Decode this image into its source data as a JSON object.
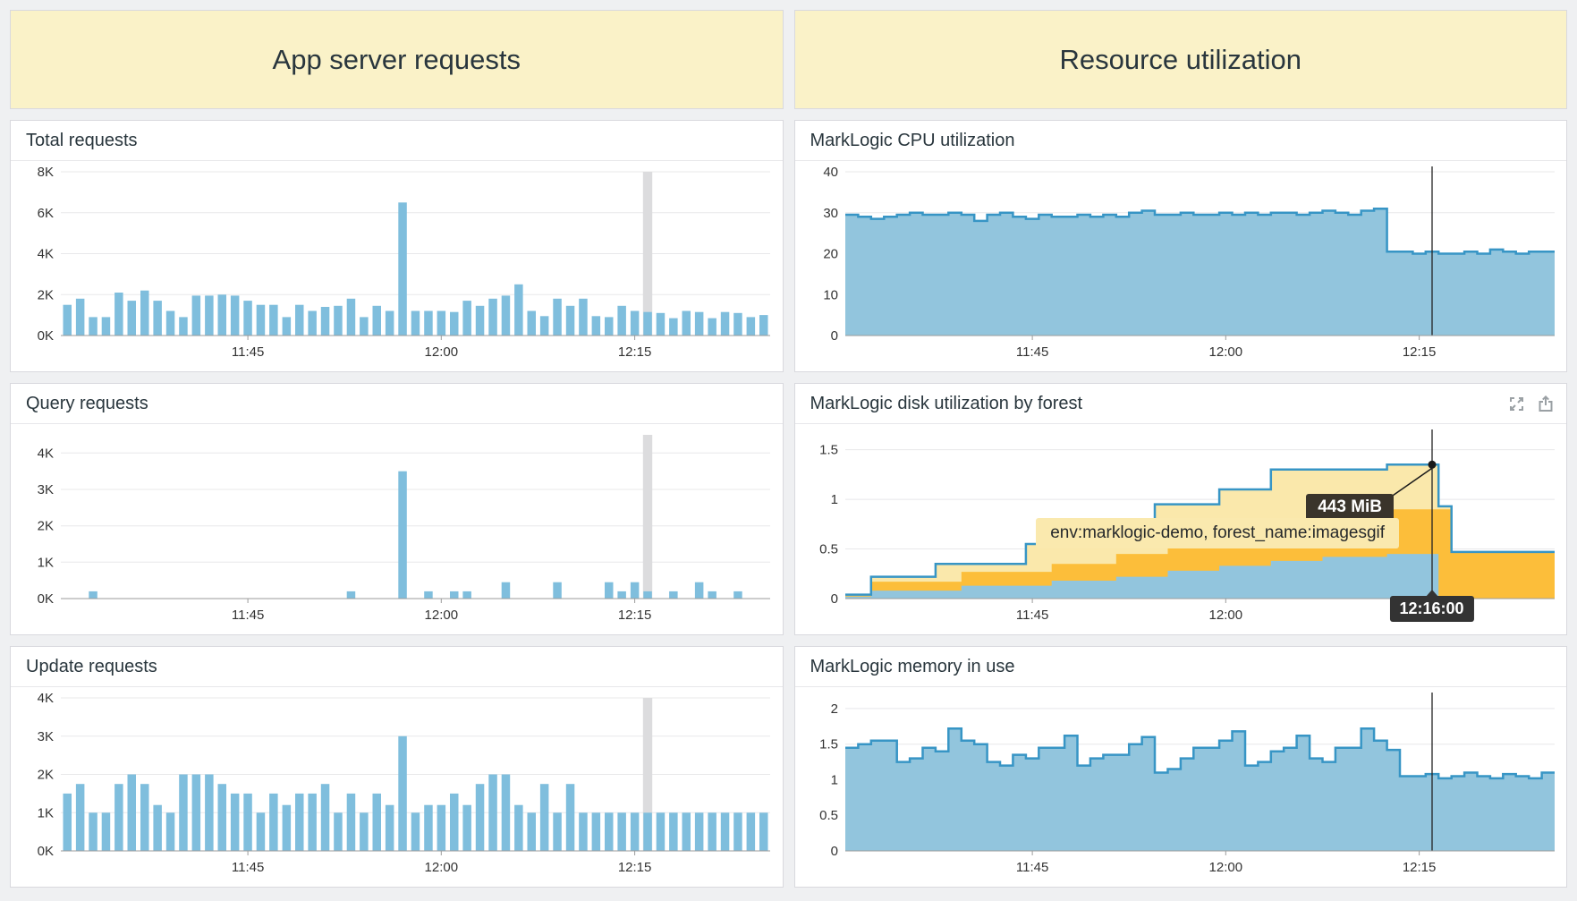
{
  "headers": {
    "left": "App server requests",
    "right": "Resource utilization"
  },
  "icons": {
    "expand": "expand-icon",
    "share": "share-upload-icon"
  },
  "colors": {
    "background": "#eff0f2",
    "panel_bg": "#ffffff",
    "panel_border": "#d9d9de",
    "header_bg": "#faf2c8",
    "title_color": "#29363d",
    "tick_color": "#333333",
    "grid": "#e8e8ea",
    "axis": "#9b9b9b",
    "bar": "#7fbedd",
    "hover_bar": "#dcdcde",
    "area_fill": "#92c5dd",
    "area_line": "#3795c5",
    "stack_blue": "#92c5dd",
    "stack_orange": "#fcbe3a",
    "stack_pale": "#fae8ab",
    "tooltip_dark_bg": "#3a342b",
    "tooltip_time_bg": "#333333",
    "tooltip_series_bg": "#fae9ae",
    "icon_color": "#9aa0a4",
    "crosshair": "#222222"
  },
  "time_axis": {
    "start": "11:31",
    "end": "12:25",
    "slots": 55,
    "ticks": [
      {
        "label": "11:45",
        "index": 14
      },
      {
        "label": "12:00",
        "index": 29
      },
      {
        "label": "12:15",
        "index": 44
      }
    ]
  },
  "chart_data": [
    {
      "id": "total-requests",
      "type": "bar",
      "title": "Total requests",
      "ylim": [
        0,
        8
      ],
      "hover_index": 45,
      "y_ticks": [
        {
          "label": "0K",
          "value": 0
        },
        {
          "label": "2K",
          "value": 2
        },
        {
          "label": "4K",
          "value": 4
        },
        {
          "label": "6K",
          "value": 6
        },
        {
          "label": "8K",
          "value": 8
        }
      ],
      "x_ticks": [
        {
          "label": "11:45",
          "index": 14
        },
        {
          "label": "12:00",
          "index": 29
        },
        {
          "label": "12:15",
          "index": 44
        }
      ],
      "values": [
        1.5,
        1.8,
        0.9,
        0.9,
        2.1,
        1.7,
        2.2,
        1.7,
        1.2,
        0.9,
        1.95,
        1.95,
        2.0,
        1.95,
        1.7,
        1.5,
        1.5,
        0.9,
        1.5,
        1.2,
        1.4,
        1.45,
        1.8,
        0.9,
        1.45,
        1.2,
        6.5,
        1.2,
        1.2,
        1.2,
        1.15,
        1.7,
        1.45,
        1.8,
        1.95,
        2.5,
        1.2,
        0.95,
        1.8,
        1.45,
        1.8,
        0.95,
        0.9,
        1.45,
        1.2,
        1.15,
        1.1,
        0.85,
        1.2,
        1.15,
        0.85,
        1.15,
        1.1,
        0.9,
        1.0
      ]
    },
    {
      "id": "cpu-utilization",
      "type": "area",
      "title": "MarkLogic CPU utilization",
      "ylim": [
        0,
        40
      ],
      "crosshair_index": 45,
      "y_ticks": [
        {
          "label": "0",
          "value": 0
        },
        {
          "label": "10",
          "value": 10
        },
        {
          "label": "20",
          "value": 20
        },
        {
          "label": "30",
          "value": 30
        },
        {
          "label": "40",
          "value": 40
        }
      ],
      "x_ticks": [
        {
          "label": "11:45",
          "index": 14
        },
        {
          "label": "12:00",
          "index": 29
        },
        {
          "label": "12:15",
          "index": 44
        }
      ],
      "values": [
        29.5,
        29,
        28.5,
        29,
        29.5,
        30,
        29.5,
        29.5,
        30,
        29.5,
        28,
        29.5,
        30,
        29,
        28.5,
        29.5,
        29,
        29,
        29.5,
        29,
        29.5,
        29,
        30,
        30.5,
        29.5,
        29.5,
        30,
        29.5,
        29.5,
        30,
        29.5,
        30,
        29.5,
        30,
        30,
        29.5,
        30,
        30.5,
        30,
        29.5,
        30.5,
        31,
        20.5,
        20.5,
        20,
        20.5,
        20,
        20,
        20.5,
        20,
        21,
        20.5,
        20,
        20.5,
        20.5
      ]
    },
    {
      "id": "query-requests",
      "type": "bar",
      "title": "Query requests",
      "ylim": [
        0,
        4.5
      ],
      "hover_index": 45,
      "y_ticks": [
        {
          "label": "0K",
          "value": 0
        },
        {
          "label": "1K",
          "value": 1
        },
        {
          "label": "2K",
          "value": 2
        },
        {
          "label": "3K",
          "value": 3
        },
        {
          "label": "4K",
          "value": 4
        }
      ],
      "x_ticks": [
        {
          "label": "11:45",
          "index": 14
        },
        {
          "label": "12:00",
          "index": 29
        },
        {
          "label": "12:15",
          "index": 44
        }
      ],
      "values": [
        0,
        0,
        0.2,
        0,
        0,
        0,
        0,
        0,
        0,
        0,
        0,
        0,
        0,
        0,
        0,
        0,
        0,
        0,
        0,
        0,
        0,
        0,
        0.2,
        0,
        0,
        0,
        3.5,
        0,
        0.2,
        0,
        0.2,
        0.2,
        0,
        0,
        0.45,
        0,
        0,
        0,
        0.45,
        0,
        0,
        0,
        0.45,
        0.2,
        0.45,
        0.2,
        0,
        0.2,
        0,
        0.45,
        0.2,
        0,
        0.2,
        0,
        0
      ]
    },
    {
      "id": "disk-by-forest",
      "type": "stacked_area",
      "title": "MarkLogic disk utilization by forest",
      "ylim": [
        0,
        1.65
      ],
      "crosshair_index": 45,
      "y_ticks": [
        {
          "label": "0",
          "value": 0
        },
        {
          "label": "0.5",
          "value": 0.5
        },
        {
          "label": "1",
          "value": 1
        },
        {
          "label": "1.5",
          "value": 1.5
        }
      ],
      "x_ticks": [
        {
          "label": "11:45",
          "index": 14
        },
        {
          "label": "12:00",
          "index": 29
        },
        {
          "label": "12:15",
          "index": 44
        }
      ],
      "layers": [
        {
          "color_key": "stack_pale",
          "cum": [
            0.04,
            0.04,
            0.22,
            0.22,
            0.22,
            0.22,
            0.22,
            0.35,
            0.35,
            0.35,
            0.35,
            0.35,
            0.35,
            0.35,
            0.55,
            0.55,
            0.55,
            0.55,
            0.55,
            0.72,
            0.72,
            0.72,
            0.72,
            0.72,
            0.95,
            0.95,
            0.95,
            0.95,
            0.95,
            1.1,
            1.1,
            1.1,
            1.1,
            1.3,
            1.3,
            1.3,
            1.3,
            1.3,
            1.3,
            1.3,
            1.3,
            1.3,
            1.35,
            1.35,
            1.35,
            1.35,
            0.93,
            0.47,
            0.47,
            0.47,
            0.47,
            0.47,
            0.47,
            0.47,
            0.47
          ]
        },
        {
          "color_key": "stack_orange",
          "cum": [
            0.03,
            0.03,
            0.17,
            0.17,
            0.17,
            0.17,
            0.17,
            0.17,
            0.17,
            0.27,
            0.27,
            0.27,
            0.27,
            0.27,
            0.27,
            0.27,
            0.35,
            0.35,
            0.35,
            0.35,
            0.35,
            0.45,
            0.45,
            0.45,
            0.45,
            0.52,
            0.52,
            0.52,
            0.52,
            0.6,
            0.6,
            0.6,
            0.6,
            0.68,
            0.68,
            0.68,
            0.68,
            0.8,
            0.8,
            0.8,
            0.8,
            0.8,
            0.9,
            0.9,
            0.9,
            0.9,
            0.9,
            0.47,
            0.47,
            0.47,
            0.47,
            0.47,
            0.47,
            0.47,
            0.47
          ]
        },
        {
          "color_key": "stack_blue",
          "cum": [
            0.02,
            0.02,
            0.08,
            0.08,
            0.08,
            0.08,
            0.08,
            0.08,
            0.08,
            0.13,
            0.13,
            0.13,
            0.13,
            0.13,
            0.13,
            0.13,
            0.18,
            0.18,
            0.18,
            0.18,
            0.18,
            0.22,
            0.22,
            0.22,
            0.22,
            0.28,
            0.28,
            0.28,
            0.28,
            0.33,
            0.33,
            0.33,
            0.33,
            0.38,
            0.38,
            0.38,
            0.38,
            0.42,
            0.42,
            0.42,
            0.42,
            0.42,
            0.45,
            0.45,
            0.45,
            0.45,
            0,
            0,
            0,
            0,
            0,
            0,
            0,
            0,
            0
          ]
        }
      ],
      "tooltip": {
        "value": "443 MiB",
        "series": "env:marklogic-demo, forest_name:imagesgif",
        "time": "12:16:00",
        "marker_index": 45,
        "marker_value": 1.35
      },
      "has_icons": true
    },
    {
      "id": "update-requests",
      "type": "bar",
      "title": "Update requests",
      "ylim": [
        0,
        4
      ],
      "hover_index": 45,
      "y_ticks": [
        {
          "label": "0K",
          "value": 0
        },
        {
          "label": "1K",
          "value": 1
        },
        {
          "label": "2K",
          "value": 2
        },
        {
          "label": "3K",
          "value": 3
        },
        {
          "label": "4K",
          "value": 4
        }
      ],
      "x_ticks": [
        {
          "label": "11:45",
          "index": 14
        },
        {
          "label": "12:00",
          "index": 29
        },
        {
          "label": "12:15",
          "index": 44
        }
      ],
      "values": [
        1.5,
        1.75,
        1.0,
        1.0,
        1.75,
        2.0,
        1.75,
        1.2,
        1.0,
        2.0,
        2.0,
        2.0,
        1.75,
        1.5,
        1.5,
        1.0,
        1.5,
        1.2,
        1.5,
        1.5,
        1.75,
        1.0,
        1.5,
        1.0,
        1.5,
        1.2,
        3.0,
        1.0,
        1.2,
        1.2,
        1.5,
        1.2,
        1.75,
        2.0,
        2.0,
        1.2,
        1.0,
        1.75,
        1.0,
        1.75,
        1.0,
        1.0,
        1.0,
        1.0,
        1.0,
        1.0,
        1.0,
        1.0,
        1.0,
        1.0,
        1.0,
        1.0,
        1.0,
        1.0,
        1.0
      ]
    },
    {
      "id": "memory-in-use",
      "type": "area",
      "title": "MarkLogic memory in use",
      "ylim": [
        0,
        2.15
      ],
      "crosshair_index": 45,
      "y_ticks": [
        {
          "label": "0",
          "value": 0
        },
        {
          "label": "0.5",
          "value": 0.5
        },
        {
          "label": "1",
          "value": 1
        },
        {
          "label": "1.5",
          "value": 1.5
        },
        {
          "label": "2",
          "value": 2
        }
      ],
      "x_ticks": [
        {
          "label": "11:45",
          "index": 14
        },
        {
          "label": "12:00",
          "index": 29
        },
        {
          "label": "12:15",
          "index": 44
        }
      ],
      "values": [
        1.45,
        1.5,
        1.55,
        1.55,
        1.25,
        1.3,
        1.45,
        1.4,
        1.72,
        1.55,
        1.5,
        1.25,
        1.2,
        1.35,
        1.3,
        1.45,
        1.45,
        1.62,
        1.2,
        1.3,
        1.35,
        1.35,
        1.5,
        1.6,
        1.1,
        1.15,
        1.3,
        1.45,
        1.45,
        1.55,
        1.68,
        1.2,
        1.25,
        1.4,
        1.45,
        1.62,
        1.3,
        1.25,
        1.45,
        1.45,
        1.72,
        1.55,
        1.42,
        1.05,
        1.05,
        1.08,
        1.02,
        1.05,
        1.1,
        1.05,
        1.02,
        1.08,
        1.05,
        1.02,
        1.1
      ]
    }
  ]
}
